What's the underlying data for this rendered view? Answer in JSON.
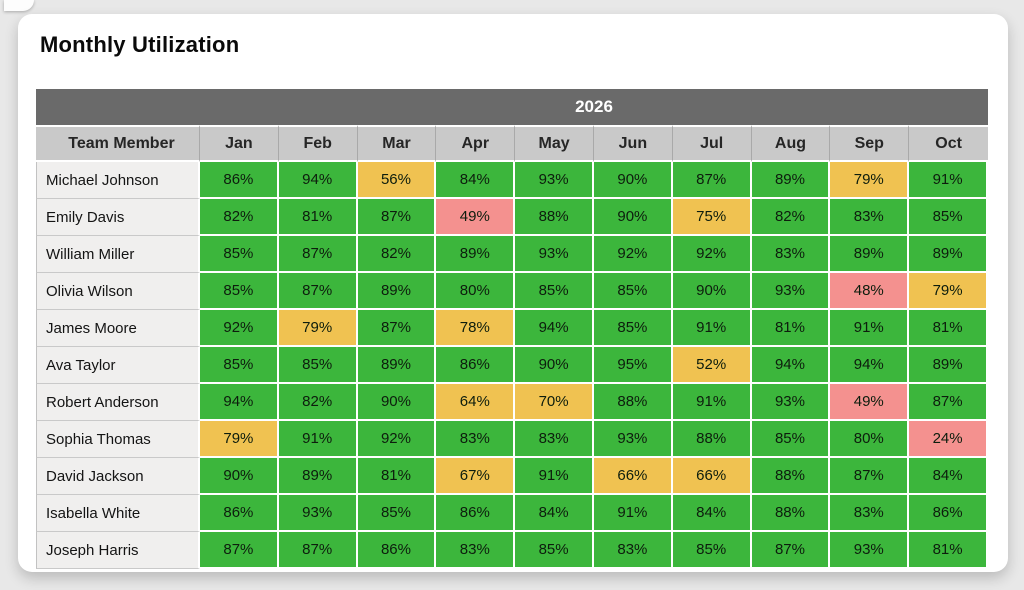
{
  "chart_data": {
    "type": "heatmap",
    "title": "Monthly Utilization",
    "year": "2026",
    "row_label": "Team Member",
    "columns": [
      "Jan",
      "Feb",
      "Mar",
      "Apr",
      "May",
      "Jun",
      "Jul",
      "Aug",
      "Sep",
      "Oct"
    ],
    "rows": [
      {
        "name": "Michael Johnson",
        "values": [
          86,
          94,
          56,
          84,
          93,
          90,
          87,
          89,
          79,
          91
        ]
      },
      {
        "name": "Emily Davis",
        "values": [
          82,
          81,
          87,
          49,
          88,
          90,
          75,
          82,
          83,
          85
        ]
      },
      {
        "name": "William Miller",
        "values": [
          85,
          87,
          82,
          89,
          93,
          92,
          92,
          83,
          89,
          89
        ]
      },
      {
        "name": "Olivia Wilson",
        "values": [
          85,
          87,
          89,
          80,
          85,
          85,
          90,
          93,
          48,
          79
        ]
      },
      {
        "name": "James Moore",
        "values": [
          92,
          79,
          87,
          78,
          94,
          85,
          91,
          81,
          91,
          81
        ]
      },
      {
        "name": "Ava Taylor",
        "values": [
          85,
          85,
          89,
          86,
          90,
          95,
          52,
          94,
          94,
          89
        ]
      },
      {
        "name": "Robert Anderson",
        "values": [
          94,
          82,
          90,
          64,
          70,
          88,
          91,
          93,
          49,
          87
        ]
      },
      {
        "name": "Sophia Thomas",
        "values": [
          79,
          91,
          92,
          83,
          83,
          93,
          88,
          85,
          80,
          24
        ]
      },
      {
        "name": "David Jackson",
        "values": [
          90,
          89,
          81,
          67,
          91,
          66,
          66,
          88,
          87,
          84
        ]
      },
      {
        "name": "Isabella White",
        "values": [
          86,
          93,
          85,
          86,
          84,
          91,
          84,
          88,
          83,
          86
        ]
      },
      {
        "name": "Joseph Harris",
        "values": [
          87,
          87,
          86,
          83,
          85,
          83,
          85,
          87,
          93,
          81
        ]
      }
    ],
    "value_format": "percent",
    "color_rules": {
      "high_min": 80,
      "mid_min": 50,
      "high_color": "#3cb63c",
      "mid_color": "#f0c251",
      "low_color": "#f4918f"
    },
    "header_colors": {
      "year_band": "#6a6a6a",
      "column_band": "#c9c9c9",
      "member_cell": "#f0efee"
    },
    "legend_position": "none",
    "grid": "white 2px cell separators"
  }
}
